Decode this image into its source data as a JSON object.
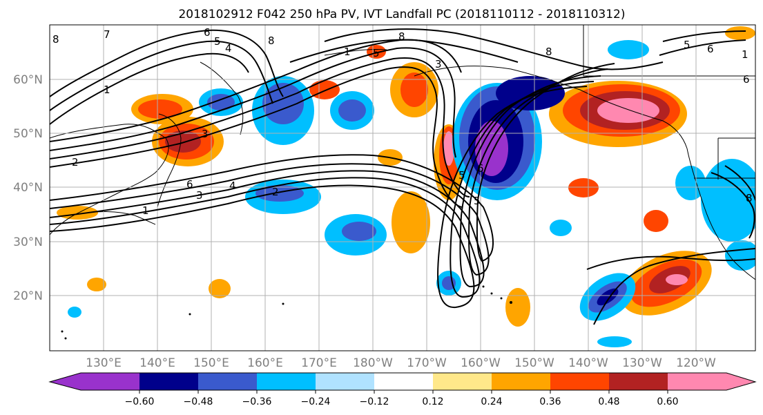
{
  "title": "2018102912 F042 250 hPa PV, IVT Landfall PC (2018110112 - 2018110312)",
  "longitude_labels": [
    "130°E",
    "140°E",
    "150°E",
    "160°E",
    "170°E",
    "180°W",
    "170°W",
    "160°W",
    "150°W",
    "140°W",
    "130°W",
    "120°W"
  ],
  "latitude_labels": [
    "60°N",
    "50°N",
    "40°N",
    "30°N",
    "20°N"
  ],
  "colorbar": {
    "tick_labels": [
      "−0.60",
      "−0.48",
      "−0.36",
      "−0.24",
      "−0.12",
      "0.12",
      "0.24",
      "0.36",
      "0.48",
      "0.60"
    ],
    "colors": [
      "#9932cc",
      "#00008b",
      "#3a5acd",
      "#00bfff",
      "#b0e2ff",
      "#ffffff",
      "#ffe88a",
      "#ffa500",
      "#ff4500",
      "#b22222",
      "#ff88b0"
    ]
  },
  "contour_labels": [
    {
      "text": "8"
    },
    {
      "text": "7"
    },
    {
      "text": "6"
    },
    {
      "text": "5"
    },
    {
      "text": "4"
    },
    {
      "text": "8"
    },
    {
      "text": "1"
    },
    {
      "text": "1"
    },
    {
      "text": "2"
    },
    {
      "text": "6"
    },
    {
      "text": "4"
    },
    {
      "text": "3"
    },
    {
      "text": "2"
    },
    {
      "text": "1"
    },
    {
      "text": "5"
    },
    {
      "text": "3"
    },
    {
      "text": "3"
    },
    {
      "text": "8"
    },
    {
      "text": "8"
    },
    {
      "text": "5"
    },
    {
      "text": "6"
    },
    {
      "text": "5"
    },
    {
      "text": "5"
    },
    {
      "text": "6"
    },
    {
      "text": "1"
    },
    {
      "text": "6"
    },
    {
      "text": "8"
    }
  ]
}
